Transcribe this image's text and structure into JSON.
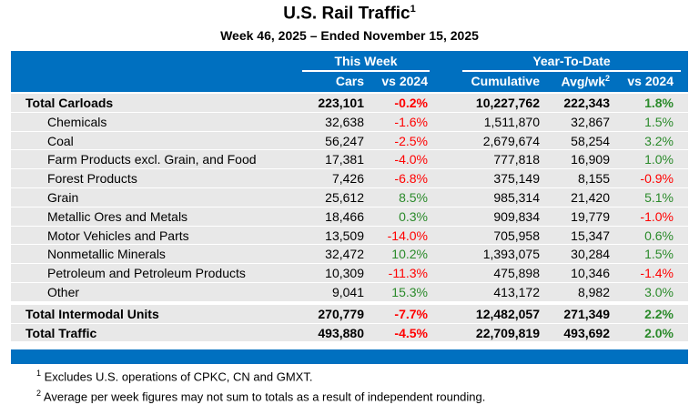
{
  "title": "U.S. Rail Traffic",
  "title_note": "1",
  "subtitle": "Week 46, 2025 – Ended November 15, 2025",
  "header": {
    "this_week": "This Week",
    "ytd": "Year-To-Date",
    "cars": "Cars",
    "vs1": "vs 2024",
    "cumulative": "Cumulative",
    "avg": "Avg/wk",
    "avg_note": "2",
    "vs2": "vs 2024"
  },
  "colors": {
    "header_bg": "#0070c0",
    "negative": "#ff0000",
    "positive": "#2a8a2a"
  },
  "rows": [
    {
      "label": "Total Carloads",
      "cars": "223,101",
      "vs": "-0.2%",
      "cum": "10,227,762",
      "avg": "222,343",
      "vs_ytd": "1.8%",
      "bold": true
    },
    {
      "label": "Chemicals",
      "cars": "32,638",
      "vs": "-1.6%",
      "cum": "1,511,870",
      "avg": "32,867",
      "vs_ytd": "1.5%"
    },
    {
      "label": "Coal",
      "cars": "56,247",
      "vs": "-2.5%",
      "cum": "2,679,674",
      "avg": "58,254",
      "vs_ytd": "3.2%"
    },
    {
      "label": "Farm Products excl. Grain, and Food",
      "cars": "17,381",
      "vs": "-4.0%",
      "cum": "777,818",
      "avg": "16,909",
      "vs_ytd": "1.0%"
    },
    {
      "label": "Forest Products",
      "cars": "7,426",
      "vs": "-6.8%",
      "cum": "375,149",
      "avg": "8,155",
      "vs_ytd": "-0.9%"
    },
    {
      "label": "Grain",
      "cars": "25,612",
      "vs": "8.5%",
      "cum": "985,314",
      "avg": "21,420",
      "vs_ytd": "5.1%"
    },
    {
      "label": "Metallic Ores and Metals",
      "cars": "18,466",
      "vs": "0.3%",
      "cum": "909,834",
      "avg": "19,779",
      "vs_ytd": "-1.0%"
    },
    {
      "label": "Motor Vehicles and Parts",
      "cars": "13,509",
      "vs": "-14.0%",
      "cum": "705,958",
      "avg": "15,347",
      "vs_ytd": "0.6%"
    },
    {
      "label": "Nonmetallic Minerals",
      "cars": "32,472",
      "vs": "10.2%",
      "cum": "1,393,075",
      "avg": "30,284",
      "vs_ytd": "1.5%"
    },
    {
      "label": "Petroleum and Petroleum Products",
      "cars": "10,309",
      "vs": "-11.3%",
      "cum": "475,898",
      "avg": "10,346",
      "vs_ytd": "-1.4%"
    },
    {
      "label": "Other",
      "cars": "9,041",
      "vs": "15.3%",
      "cum": "413,172",
      "avg": "8,982",
      "vs_ytd": "3.0%"
    },
    {
      "label": "Total Intermodal Units",
      "cars": "270,779",
      "vs": "-7.7%",
      "cum": "12,482,057",
      "avg": "271,349",
      "vs_ytd": "2.2%",
      "bold": true
    },
    {
      "label": "Total Traffic",
      "cars": "493,880",
      "vs": "-4.5%",
      "cum": "22,709,819",
      "avg": "493,692",
      "vs_ytd": "2.0%",
      "bold": true
    }
  ],
  "footnotes": [
    {
      "num": "1",
      "text": "Excludes U.S. operations of CPKC, CN and GMXT."
    },
    {
      "num": "2",
      "text": "Average per week figures may not sum to totals as a result of independent rounding."
    }
  ]
}
